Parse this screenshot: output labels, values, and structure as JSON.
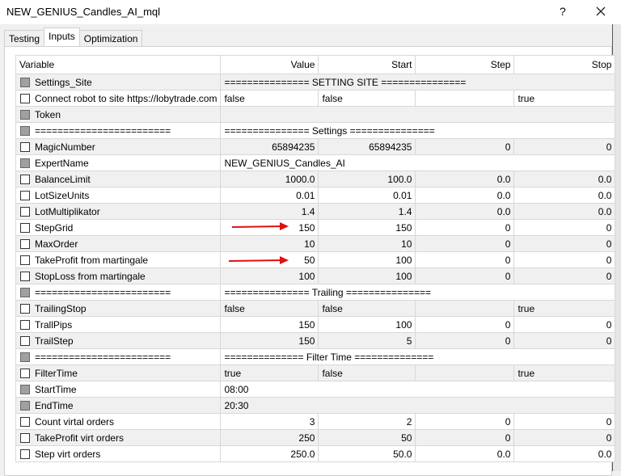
{
  "window": {
    "title": "NEW_GENIUS_Candles_AI_mql",
    "help": "?"
  },
  "tabs": [
    "Testing",
    "Inputs",
    "Optimization"
  ],
  "table": {
    "headers": {
      "variable": "Variable",
      "value": "Value",
      "start": "Start",
      "step": "Step",
      "stop": "Stop"
    },
    "rows": [
      {
        "variable": "Settings_Site",
        "locked": true,
        "span": "=============== SETTING SITE ==============="
      },
      {
        "variable": "Connect robot to site https://lobytrade.com",
        "value": "false",
        "start": "false",
        "stop": "true"
      },
      {
        "variable": "Token",
        "locked": true
      },
      {
        "variable": "========================",
        "locked": true,
        "span": "=============== Settings ==============="
      },
      {
        "variable": "MagicNumber",
        "value": "65894235",
        "start": "65894235",
        "step": "0",
        "stop": "0"
      },
      {
        "variable": "ExpertName",
        "locked": true,
        "span": "NEW_GENIUS_Candles_AI"
      },
      {
        "variable": "BalanceLimit",
        "value": "1000.0",
        "start": "100.0",
        "step": "0.0",
        "stop": "0.0"
      },
      {
        "variable": "LotSizeUnits",
        "value": "0.01",
        "start": "0.01",
        "step": "0.0",
        "stop": "0.0"
      },
      {
        "variable": "LotMultiplikator",
        "value": "1.4",
        "start": "1.4",
        "step": "0.0",
        "stop": "0.0"
      },
      {
        "variable": "StepGrid",
        "value": "150",
        "start": "150",
        "step": "0",
        "stop": "0"
      },
      {
        "variable": "MaxOrder",
        "value": "10",
        "start": "10",
        "step": "0",
        "stop": "0"
      },
      {
        "variable": "TakeProfit from martingale",
        "value": "50",
        "start": "100",
        "step": "0",
        "stop": "0"
      },
      {
        "variable": "StopLoss from martingale",
        "value": "100",
        "start": "100",
        "step": "0",
        "stop": "0"
      },
      {
        "variable": "========================",
        "locked": true,
        "span": "=============== Trailing ==============="
      },
      {
        "variable": "TrailingStop",
        "value": "false",
        "start": "false",
        "stop": "true"
      },
      {
        "variable": "TrallPips",
        "value": "150",
        "start": "100",
        "step": "0",
        "stop": "0"
      },
      {
        "variable": "TrailStep",
        "value": "150",
        "start": "5",
        "step": "0",
        "stop": "0"
      },
      {
        "variable": "========================",
        "locked": true,
        "span": "============== Filter Time =============="
      },
      {
        "variable": "FilterTime",
        "value": "true",
        "start": "false",
        "stop": "true"
      },
      {
        "variable": "StartTime",
        "locked": true,
        "span": "08:00"
      },
      {
        "variable": "EndTime",
        "locked": true,
        "span": "20:30"
      },
      {
        "variable": "Count virtal orders",
        "value": "3",
        "start": "2",
        "step": "0",
        "stop": "0"
      },
      {
        "variable": "TakeProfit virt orders",
        "value": "250",
        "start": "50",
        "step": "0",
        "stop": "0"
      },
      {
        "variable": "Step virt orders",
        "value": "250.0",
        "start": "50.0",
        "step": "0.0",
        "stop": "0.0"
      }
    ]
  }
}
